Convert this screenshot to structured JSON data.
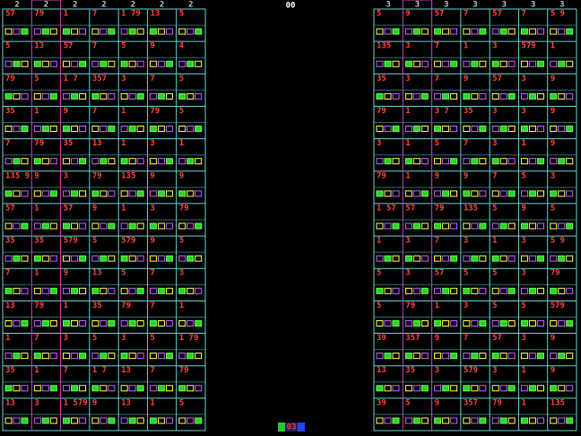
{
  "top_counter": "00",
  "bottom_counter": "03",
  "left_grid": {
    "headers": [
      "2",
      "2",
      "2",
      "2",
      "2",
      "2",
      "2"
    ],
    "rows": [
      [
        "57",
        "79",
        "1",
        "7",
        "1 79",
        "13",
        "5"
      ],
      [
        "5",
        "13",
        "57",
        "7",
        "5",
        "9",
        "4"
      ],
      [
        "79",
        "5",
        "1 7",
        "357",
        "3",
        "7",
        "5"
      ],
      [
        "35",
        "1",
        "9",
        "7",
        "1",
        "79",
        "5"
      ],
      [
        "7",
        "79",
        "35",
        "13",
        "1",
        "3",
        "1"
      ],
      [
        "135 9",
        "9",
        "3",
        "79",
        "135",
        "9",
        "9"
      ],
      [
        "57",
        "1",
        "57",
        "9",
        "1",
        "3",
        "79"
      ],
      [
        "35",
        "35",
        "579",
        "5",
        "579",
        "9",
        "5"
      ],
      [
        "7",
        "1",
        "9",
        "13",
        "5",
        "7",
        "3"
      ],
      [
        "13",
        "79",
        "1",
        "35",
        "79",
        "7",
        "1"
      ],
      [
        "1",
        "7",
        "3",
        "5",
        "3",
        "5",
        "1 79"
      ],
      [
        "35",
        "1",
        "7",
        "1 7",
        "13",
        "7",
        "79"
      ],
      [
        "13",
        "3",
        "1 579",
        "9",
        "13",
        "1",
        "5"
      ]
    ]
  },
  "right_grid": {
    "headers": [
      "3",
      "3",
      "3",
      "3",
      "3",
      "3",
      "3"
    ],
    "rows": [
      [
        "5",
        "9",
        "57",
        "7",
        "57",
        "7",
        "5 9"
      ],
      [
        "135",
        "3",
        "7",
        "1",
        "3",
        "579",
        "1"
      ],
      [
        "35",
        "3",
        "7",
        "9",
        "57",
        "3",
        "9"
      ],
      [
        "79",
        "1",
        "3 7",
        "35",
        "3",
        "3",
        "9"
      ],
      [
        "3",
        "1",
        "5",
        "7",
        "3",
        "1",
        "9"
      ],
      [
        "79",
        "1",
        "9",
        "9",
        "7",
        "5",
        "3"
      ],
      [
        "1 57",
        "57",
        "79",
        "135",
        "5",
        "9",
        "5"
      ],
      [
        "1",
        "3",
        "7",
        "3",
        "1",
        "3",
        "5 9"
      ],
      [
        "5",
        "3",
        "57",
        "5",
        "5",
        "3",
        "79"
      ],
      [
        "5",
        "79",
        "1",
        "3",
        "5",
        "5",
        "579"
      ],
      [
        "39",
        "357",
        "9",
        "7",
        "57",
        "3",
        "9"
      ],
      [
        "13",
        "35",
        "3",
        "579",
        "3",
        "1",
        "9"
      ],
      [
        "39",
        "5",
        "9",
        "357",
        "79",
        "1",
        "135"
      ]
    ]
  }
}
